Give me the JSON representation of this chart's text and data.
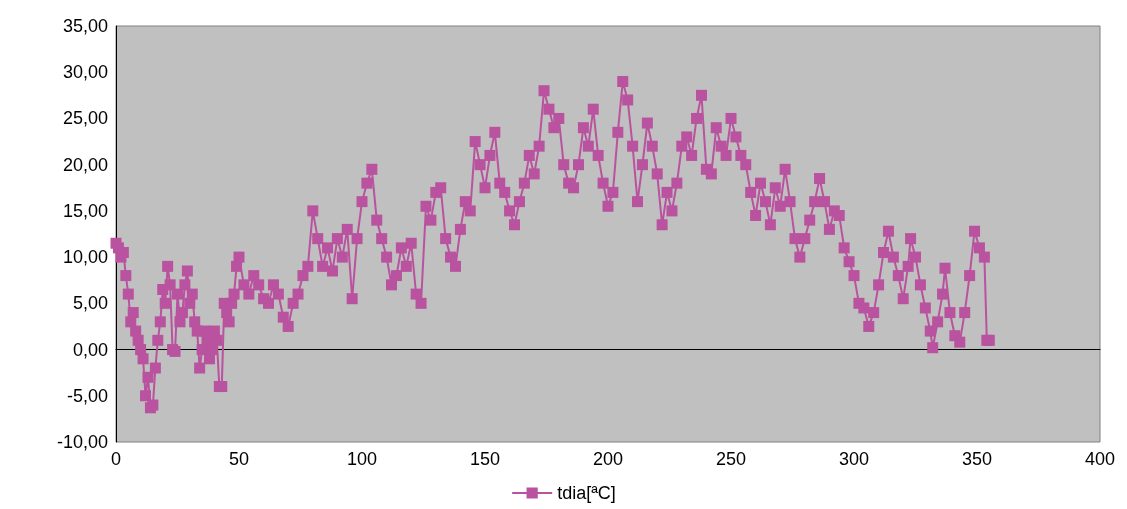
{
  "chart_data": {
    "type": "line",
    "marker": "square",
    "line_style": "solid",
    "legend": "bottom",
    "xlim": [
      0,
      400
    ],
    "xticks": [
      0,
      50,
      100,
      150,
      200,
      250,
      300,
      350,
      400
    ],
    "ylim": [
      -10,
      35
    ],
    "yticks": [
      {
        "value": -10,
        "label": "-10,00"
      },
      {
        "value": -5,
        "label": "-5,00"
      },
      {
        "value": 0,
        "label": "0,00"
      },
      {
        "value": 5,
        "label": "5,00"
      },
      {
        "value": 10,
        "label": "10,00"
      },
      {
        "value": 15,
        "label": "15,00"
      },
      {
        "value": 20,
        "label": "20,00"
      },
      {
        "value": 25,
        "label": "25,00"
      },
      {
        "value": 30,
        "label": "30,00"
      },
      {
        "value": 35,
        "label": "35,00"
      }
    ],
    "x": [
      0,
      1,
      2,
      3,
      4,
      5,
      6,
      7,
      8,
      9,
      10,
      11,
      12,
      13,
      14,
      15,
      16,
      17,
      18,
      19,
      20,
      21,
      22,
      23,
      24,
      25,
      26,
      27,
      28,
      29,
      30,
      31,
      32,
      33,
      34,
      35,
      36,
      37,
      38,
      39,
      40,
      41,
      42,
      43,
      44,
      45,
      46,
      47,
      48,
      49,
      50,
      52,
      54,
      56,
      58,
      60,
      62,
      64,
      66,
      68,
      70,
      72,
      74,
      76,
      78,
      80,
      82,
      84,
      86,
      88,
      90,
      92,
      94,
      96,
      98,
      100,
      102,
      104,
      106,
      108,
      110,
      112,
      114,
      116,
      118,
      120,
      122,
      124,
      126,
      128,
      130,
      132,
      134,
      136,
      138,
      140,
      142,
      144,
      146,
      148,
      150,
      152,
      154,
      156,
      158,
      160,
      162,
      164,
      166,
      168,
      170,
      172,
      174,
      176,
      178,
      180,
      182,
      184,
      186,
      188,
      190,
      192,
      194,
      196,
      198,
      200,
      202,
      204,
      206,
      208,
      210,
      212,
      214,
      216,
      218,
      220,
      222,
      224,
      226,
      228,
      230,
      232,
      234,
      236,
      238,
      240,
      242,
      244,
      246,
      248,
      250,
      252,
      254,
      256,
      258,
      260,
      262,
      264,
      266,
      268,
      270,
      272,
      274,
      276,
      278,
      280,
      282,
      284,
      286,
      288,
      290,
      292,
      294,
      296,
      298,
      300,
      302,
      304,
      306,
      308,
      310,
      312,
      314,
      316,
      318,
      320,
      322,
      323,
      325,
      327,
      329,
      331,
      332,
      334,
      336,
      337,
      339,
      341,
      343,
      345,
      347,
      349,
      351,
      353,
      354,
      355
    ],
    "series": [
      {
        "name": "tdia[ªC]",
        "color": "#b9529f",
        "values": [
          11.5,
          11,
          10,
          10.5,
          8,
          6,
          3,
          4,
          2,
          1,
          0,
          -1,
          -5,
          -3,
          -6.3,
          -6,
          -2,
          1,
          3,
          6.5,
          5,
          9,
          7,
          0,
          -0.2,
          6,
          3,
          4,
          7,
          8.5,
          5,
          6,
          3,
          2,
          -2,
          0,
          2,
          1,
          -1,
          0,
          2,
          1,
          -4,
          -4,
          5,
          4,
          3,
          5,
          6,
          9,
          10,
          7,
          6,
          8,
          7,
          5.5,
          5,
          7,
          6,
          3.5,
          2.5,
          5,
          6,
          8,
          9,
          15,
          12,
          9,
          11,
          8.5,
          12,
          10,
          13,
          5.5,
          12,
          16,
          18,
          19.5,
          14,
          12,
          10,
          7,
          8,
          11,
          9,
          11.5,
          6,
          5,
          15.5,
          14,
          17,
          17.5,
          12,
          10,
          9,
          13,
          16,
          15,
          22.5,
          20,
          17.5,
          21,
          23.5,
          18,
          17,
          15,
          13.5,
          16,
          18,
          21,
          19,
          22,
          28,
          26,
          24,
          25,
          20,
          18,
          17.5,
          20,
          24,
          22,
          26,
          21,
          18,
          15.5,
          17,
          23.5,
          29,
          27,
          22,
          16,
          20,
          24.5,
          22,
          19,
          13.5,
          17,
          15,
          18,
          22,
          23,
          21,
          25,
          27.5,
          19.5,
          19,
          24,
          22,
          21,
          25,
          23,
          21,
          20,
          17,
          14.5,
          18,
          16,
          13.5,
          17.5,
          15.5,
          19.5,
          16,
          12,
          10,
          12,
          14,
          16,
          18.5,
          16,
          13,
          15,
          14.5,
          11,
          9.5,
          8,
          5,
          4.5,
          2.5,
          4,
          7,
          10.5,
          12.8,
          10,
          8,
          5.5,
          9,
          12,
          10,
          7,
          4.5,
          2,
          0.2,
          3,
          6,
          8.8,
          4,
          1.5,
          0.8,
          4,
          8,
          12.8,
          11,
          10,
          1,
          1
        ]
      }
    ]
  }
}
